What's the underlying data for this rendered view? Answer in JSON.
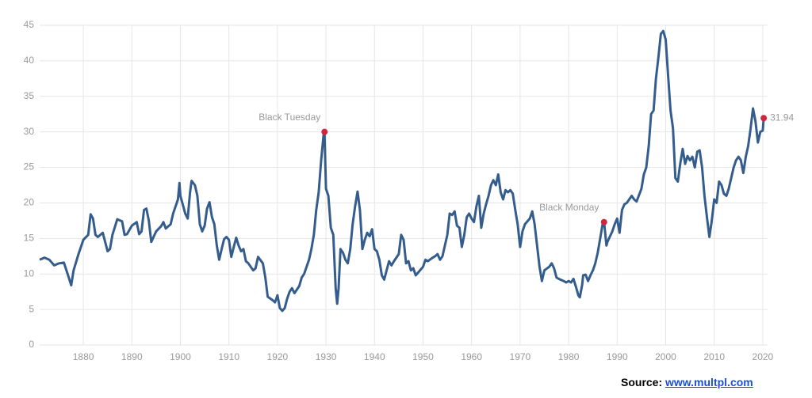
{
  "chart_data": {
    "type": "line",
    "color": "#345d8e",
    "marker_color": "#d0273e",
    "grid": true,
    "xlim": [
      1871,
      2021
    ],
    "ylim": [
      0,
      45
    ],
    "xticks": [
      1880,
      1890,
      1900,
      1910,
      1920,
      1930,
      1940,
      1950,
      1960,
      1970,
      1980,
      1990,
      2000,
      2010,
      2020
    ],
    "yticks": [
      0,
      5,
      10,
      15,
      20,
      25,
      30,
      35,
      40,
      45
    ],
    "x": [
      1871,
      1872,
      1873,
      1874,
      1875,
      1876,
      1877,
      1877.5,
      1878,
      1879,
      1880,
      1881,
      1881.5,
      1882,
      1882.5,
      1883,
      1884,
      1885,
      1885.5,
      1886,
      1887,
      1888,
      1888.5,
      1889,
      1890,
      1891,
      1891.5,
      1892,
      1892.5,
      1893,
      1893.5,
      1894,
      1895,
      1896,
      1896.5,
      1897,
      1898,
      1898.5,
      1899,
      1899.5,
      1899.8,
      1900,
      1901,
      1901.5,
      1902,
      1902.3,
      1903,
      1903.5,
      1904,
      1904.5,
      1905,
      1905.5,
      1906,
      1906.5,
      1907,
      1907.5,
      1908,
      1908.5,
      1909,
      1909.5,
      1910,
      1910.5,
      1911,
      1911.5,
      1912,
      1912.5,
      1913,
      1913.5,
      1914,
      1915,
      1915.5,
      1916,
      1917,
      1917.5,
      1918,
      1919,
      1919.5,
      1920,
      1920.5,
      1921,
      1921.5,
      1922,
      1922.5,
      1923,
      1923.5,
      1924,
      1924.5,
      1925,
      1925.5,
      1926,
      1926.5,
      1927,
      1927.5,
      1928,
      1928.5,
      1929,
      1929.5,
      1929.7,
      1930,
      1930.5,
      1931,
      1931.5,
      1932,
      1932.3,
      1932.6,
      1933,
      1933.5,
      1934,
      1934.5,
      1935,
      1935.5,
      1936,
      1936.5,
      1937,
      1937.5,
      1938,
      1938.5,
      1939,
      1939.5,
      1940,
      1940.5,
      1941,
      1941.5,
      1942,
      1943,
      1943.5,
      1944,
      1945,
      1945.5,
      1946,
      1946.5,
      1947,
      1947.5,
      1948,
      1948.5,
      1949,
      1950,
      1950.5,
      1951,
      1952,
      1952.5,
      1953,
      1953.5,
      1954,
      1955,
      1955.5,
      1956,
      1956.5,
      1957,
      1957.5,
      1958,
      1958.5,
      1959,
      1959.5,
      1960,
      1960.5,
      1961,
      1961.5,
      1962,
      1962.5,
      1963,
      1963.5,
      1964,
      1964.5,
      1965,
      1965.5,
      1966,
      1966.5,
      1967,
      1967.5,
      1968,
      1968.5,
      1969,
      1969.5,
      1970,
      1970.5,
      1971,
      1972,
      1972.5,
      1973,
      1973.5,
      1974,
      1974.5,
      1975,
      1976,
      1976.5,
      1977,
      1977.5,
      1978,
      1979,
      1979.5,
      1980,
      1980.5,
      1981,
      1981.5,
      1982,
      1982.3,
      1982.8,
      1983,
      1983.5,
      1984,
      1984.5,
      1985,
      1985.5,
      1986,
      1986.5,
      1987,
      1987.3,
      1987.8,
      1988,
      1989,
      1989.5,
      1990,
      1990.5,
      1991,
      1991.5,
      1992,
      1993,
      1993.5,
      1994,
      1995,
      1995.5,
      1996,
      1996.5,
      1997,
      1997.5,
      1998,
      1998.5,
      1999,
      1999.5,
      2000,
      2000.5,
      2001,
      2001.5,
      2002,
      2002.5,
      2003,
      2003.5,
      2004,
      2004.5,
      2005,
      2005.5,
      2006,
      2006.5,
      2007,
      2007.5,
      2008,
      2008.5,
      2009,
      2009.5,
      2010,
      2010.5,
      2011,
      2011.5,
      2012,
      2012.5,
      2013,
      2013.5,
      2014,
      2014.5,
      2015,
      2015.5,
      2016,
      2016.5,
      2017,
      2017.5,
      2018,
      2018.5,
      2019,
      2019.5,
      2020,
      2020.2
    ],
    "values": [
      12.0,
      12.3,
      12.0,
      11.2,
      11.5,
      11.6,
      9.5,
      8.4,
      10.5,
      12.8,
      14.8,
      15.5,
      18.4,
      17.8,
      15.5,
      15.2,
      15.8,
      13.2,
      13.5,
      15.5,
      17.7,
      17.4,
      15.5,
      15.6,
      16.8,
      17.3,
      15.6,
      16.0,
      19.0,
      19.2,
      17.5,
      14.5,
      16.0,
      16.7,
      17.3,
      16.4,
      17.0,
      18.5,
      19.5,
      20.5,
      22.8,
      21.0,
      18.5,
      17.8,
      21.5,
      23.1,
      22.5,
      21.0,
      17.0,
      16.0,
      16.8,
      19.2,
      20.1,
      18.0,
      17.0,
      14.0,
      12.0,
      13.5,
      14.9,
      15.2,
      14.8,
      12.4,
      13.8,
      15.1,
      14.0,
      13.2,
      13.5,
      11.8,
      11.5,
      10.5,
      10.8,
      12.4,
      11.5,
      9.5,
      6.8,
      6.3,
      6.0,
      7.0,
      5.2,
      4.8,
      5.2,
      6.5,
      7.5,
      8.0,
      7.3,
      7.8,
      8.3,
      9.5,
      10.0,
      11.0,
      12.0,
      13.5,
      15.5,
      19.0,
      21.5,
      26.0,
      29.5,
      30.0,
      22.0,
      21.0,
      16.5,
      15.5,
      8.0,
      5.8,
      8.0,
      13.5,
      13.0,
      12.0,
      11.5,
      13.5,
      17.0,
      19.5,
      21.6,
      19.0,
      13.5,
      14.8,
      15.8,
      15.3,
      16.3,
      13.5,
      13.2,
      12.0,
      9.8,
      9.2,
      11.8,
      11.2,
      11.8,
      12.8,
      15.5,
      14.8,
      11.5,
      11.8,
      10.5,
      10.8,
      9.8,
      10.2,
      11.0,
      12.0,
      11.8,
      12.3,
      12.5,
      12.8,
      12.0,
      12.5,
      15.5,
      18.5,
      18.3,
      18.8,
      16.8,
      16.5,
      13.8,
      15.5,
      18.0,
      18.5,
      17.8,
      17.3,
      19.5,
      21.0,
      16.5,
      18.5,
      19.8,
      21.0,
      22.5,
      23.2,
      22.5,
      24.0,
      21.5,
      20.5,
      21.8,
      21.5,
      21.8,
      21.3,
      19.0,
      17.0,
      13.8,
      16.0,
      17.0,
      17.8,
      18.8,
      17.0,
      14.0,
      11.0,
      9.0,
      10.5,
      11.0,
      11.5,
      10.8,
      9.5,
      9.3,
      9.0,
      8.8,
      9.0,
      8.8,
      9.3,
      8.2,
      7.0,
      6.7,
      8.5,
      9.8,
      9.9,
      9.0,
      9.8,
      10.5,
      11.5,
      13.0,
      15.0,
      17.0,
      17.3,
      14.0,
      14.5,
      16.0,
      17.0,
      17.8,
      15.8,
      19.0,
      19.8,
      20.0,
      21.0,
      20.5,
      20.2,
      22.0,
      24.0,
      25.0,
      28.0,
      32.5,
      33.0,
      37.5,
      40.5,
      43.8,
      44.2,
      43.0,
      38.0,
      33.0,
      30.5,
      23.5,
      23.0,
      25.5,
      27.6,
      25.5,
      26.6,
      26.0,
      26.5,
      25.0,
      27.2,
      27.4,
      25.0,
      21.0,
      18.0,
      15.2,
      17.5,
      20.5,
      20.0,
      23.0,
      22.5,
      21.3,
      21.0,
      22.0,
      23.5,
      25.0,
      26.0,
      26.5,
      26.0,
      24.2,
      26.5,
      28.0,
      30.5,
      33.3,
      31.5,
      28.5,
      30.0,
      30.2,
      31.94
    ],
    "annotations": [
      {
        "label": "Black Tuesday",
        "x": 1929.7,
        "y": 30.0
      },
      {
        "label": "Black Monday",
        "x": 1987.3,
        "y": 17.3
      },
      {
        "x": 2020.2,
        "y": 31.94
      }
    ]
  },
  "source": {
    "prefix": "Source:",
    "link": "www.multpl.com"
  }
}
